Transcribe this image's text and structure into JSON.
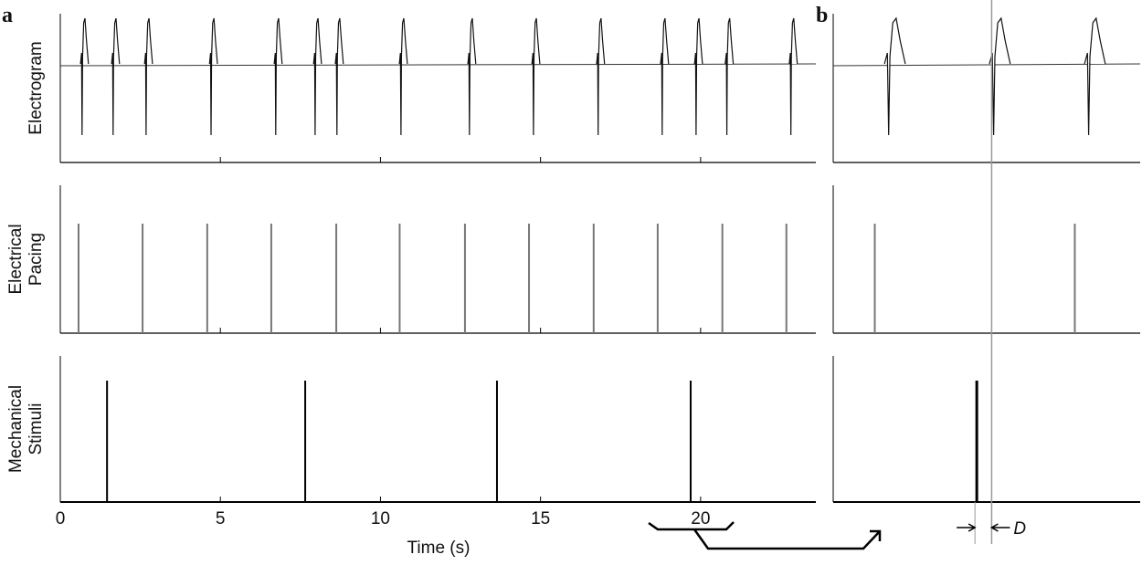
{
  "panel_labels": [
    "a",
    "b"
  ],
  "ylabels": [
    [
      "Electrogram"
    ],
    [
      "Electrical",
      "Pacing"
    ],
    [
      "Mechanical",
      "Stimuli"
    ]
  ],
  "xlabel": "Time (s)",
  "xlim": [
    0,
    23.6
  ],
  "xticks": [
    0,
    5,
    10,
    15,
    20
  ],
  "zoom_xlim": [
    18.24,
    21.34
  ],
  "beat_times": [
    0.68,
    1.65,
    2.68,
    4.71,
    6.73,
    7.96,
    8.64,
    10.64,
    12.78,
    14.78,
    16.8,
    18.8,
    19.86,
    20.82,
    22.82
  ],
  "pacing_times": [
    0.57,
    2.57,
    4.59,
    6.59,
    8.62,
    10.6,
    12.64,
    14.64,
    16.66,
    18.66,
    20.68,
    22.68
  ],
  "stimulus_times": [
    1.46,
    7.65,
    13.64,
    19.69
  ],
  "marker_time": 19.84,
  "delay_label": "D"
}
